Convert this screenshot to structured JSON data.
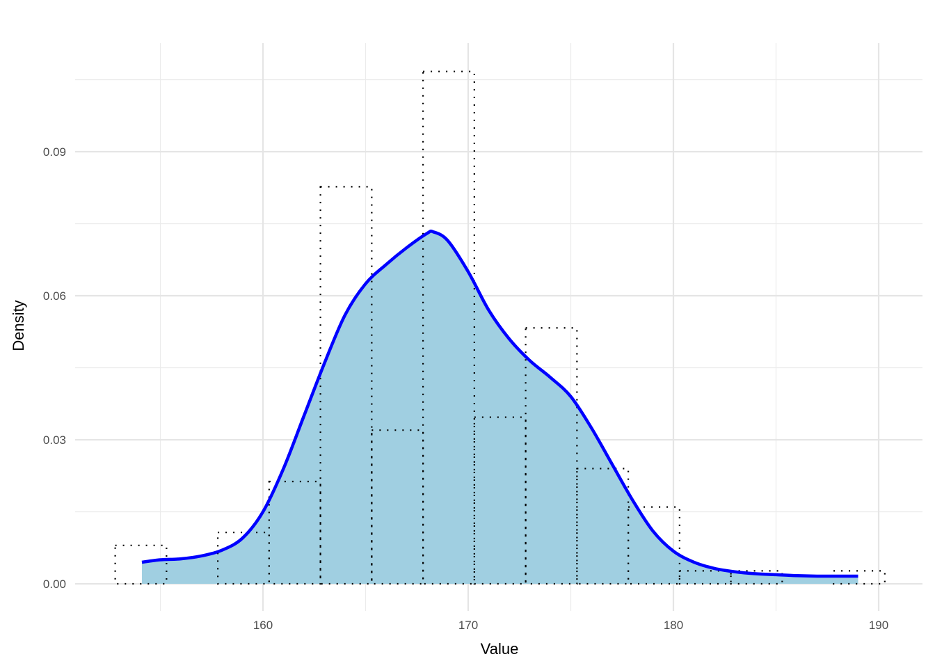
{
  "chart_data": {
    "type": "histogram_with_density",
    "title": "",
    "xlabel": "Value",
    "ylabel": "Density",
    "xlim": [
      151.8,
      191.2
    ],
    "ylim": [
      -0.0045,
      0.111
    ],
    "x_ticks": [
      160,
      170,
      180,
      190
    ],
    "x_minor_ticks": [
      155,
      165,
      175,
      185
    ],
    "y_ticks": [
      0.0,
      0.03,
      0.06,
      0.09
    ],
    "y_tick_labels": [
      "0.00",
      "0.03",
      "0.06",
      "0.09"
    ],
    "y_minor_ticks": [
      0.015,
      0.045,
      0.075,
      0.105
    ],
    "grid": true,
    "legend": null,
    "histogram": {
      "binwidth": 2.5,
      "bin_edges": [
        152.8,
        155.3,
        157.8,
        160.3,
        162.8,
        165.3,
        167.8,
        170.3,
        172.8,
        175.3,
        177.8,
        180.3,
        182.8,
        185.3,
        187.8,
        190.3
      ],
      "values": [
        0.008,
        0.0,
        0.0107,
        0.0213,
        0.0827,
        0.032,
        0.1067,
        0.0347,
        0.0533,
        0.024,
        0.016,
        0.0027,
        0.0027,
        0.0,
        0.0027
      ],
      "fill": "none",
      "line_style": "dotted",
      "line_color": "#000000"
    },
    "density": {
      "x": [
        154.1,
        155.0,
        156.0,
        157.0,
        158.0,
        159.0,
        160.0,
        161.0,
        162.0,
        163.0,
        164.0,
        165.0,
        166.0,
        167.0,
        168.0,
        168.3,
        169.0,
        170.0,
        171.0,
        172.0,
        173.0,
        174.0,
        175.0,
        176.0,
        177.0,
        178.0,
        179.0,
        180.0,
        181.0,
        182.0,
        183.0,
        184.0,
        185.0,
        186.0,
        187.0,
        188.0,
        189.0
      ],
      "y": [
        0.0045,
        0.005,
        0.0052,
        0.0058,
        0.007,
        0.0095,
        0.015,
        0.024,
        0.035,
        0.046,
        0.056,
        0.0625,
        0.0665,
        0.07,
        0.073,
        0.0733,
        0.0715,
        0.065,
        0.057,
        0.051,
        0.0465,
        0.043,
        0.039,
        0.0325,
        0.025,
        0.0175,
        0.011,
        0.0068,
        0.0045,
        0.0032,
        0.0025,
        0.0021,
        0.0019,
        0.0017,
        0.0016,
        0.0016,
        0.0016
      ],
      "line_color": "#0000ff",
      "fill_color": "#a0cfe1"
    }
  }
}
